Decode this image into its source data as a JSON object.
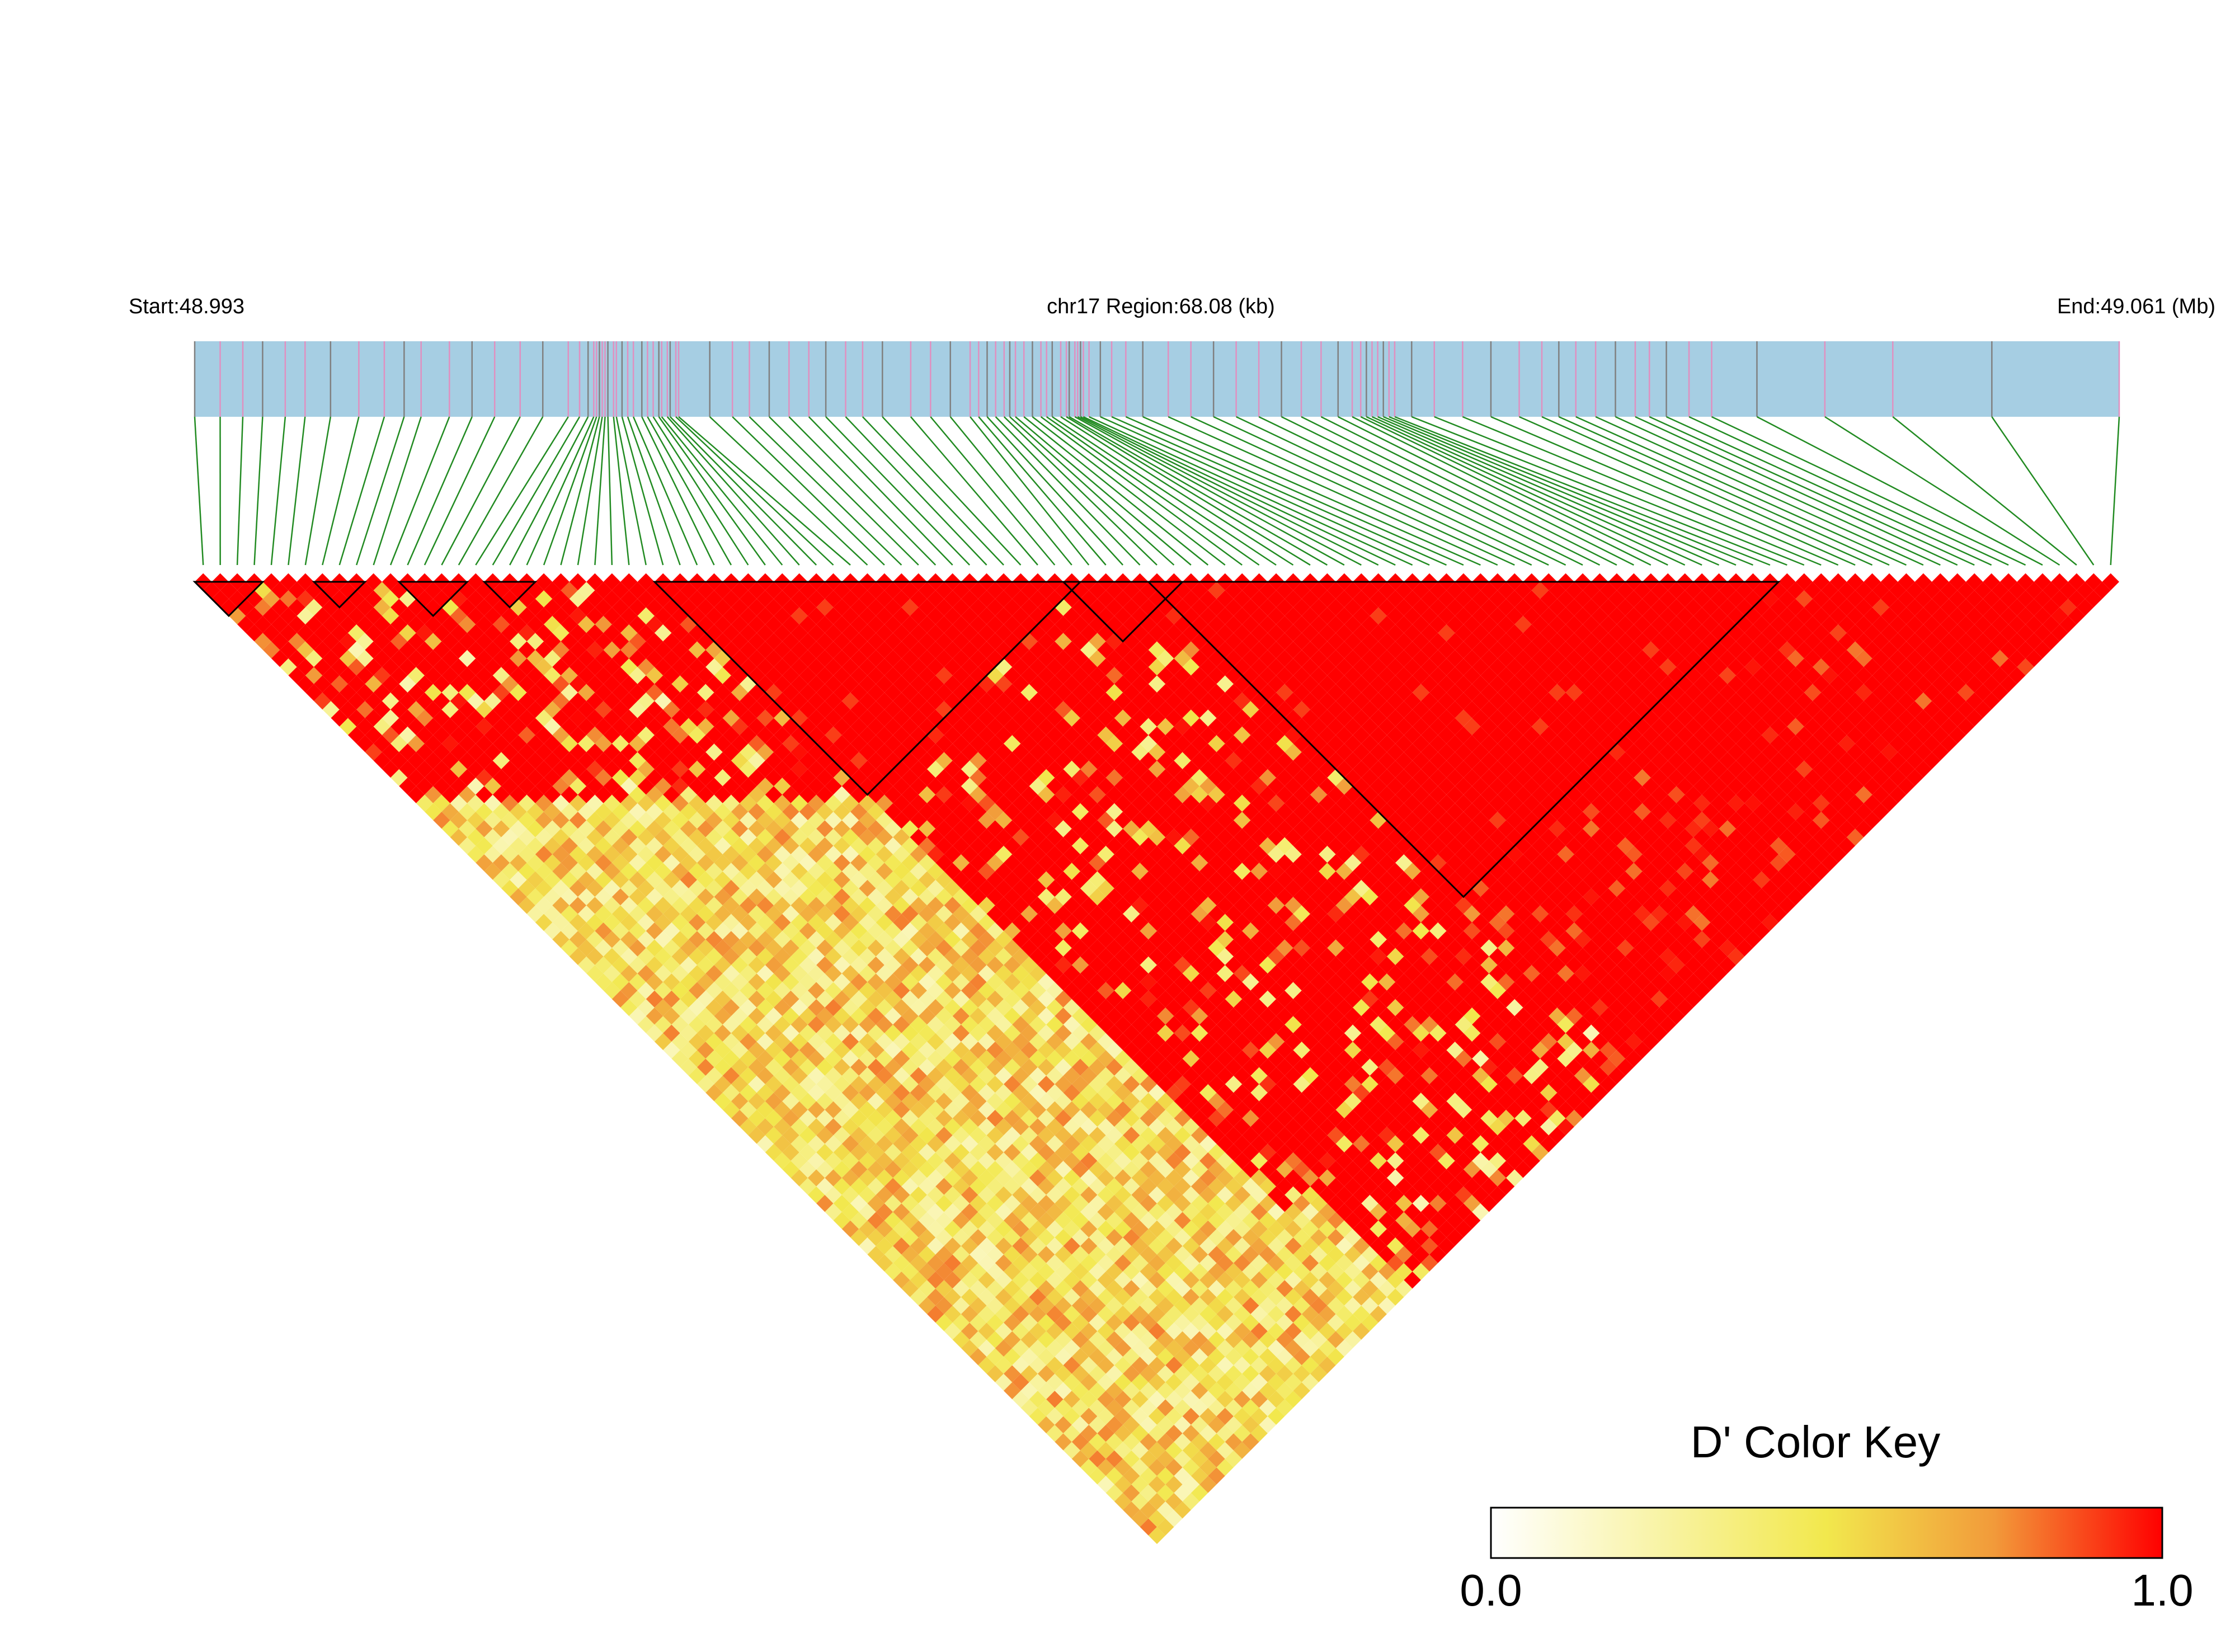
{
  "chart_data": {
    "type": "heatmap",
    "subtype": "linkage-disequilibrium-triangle",
    "start_label": "Start:48.993",
    "region_label": "chr17 Region:68.08 (kb)",
    "end_label": "End:49.061 (Mb)",
    "snp_count": 113,
    "region_start_mb": 48.993,
    "region_end_mb": 49.061,
    "snp_positions_mb": [
      48.993,
      48.9939,
      48.9947,
      48.9954,
      48.9962,
      48.9969,
      48.9978,
      48.9988,
      48.9997,
      49.0004,
      49.001,
      49.002,
      49.0028,
      49.0036,
      49.0045,
      49.0053,
      49.0062,
      49.0066,
      49.0069,
      49.0071,
      49.0072,
      49.0073,
      49.0074,
      49.0075,
      49.0076,
      49.0078,
      49.0079,
      49.0081,
      49.0083,
      49.0085,
      49.0088,
      49.009,
      49.0092,
      49.0094,
      49.0095,
      49.0097,
      49.0098,
      49.01,
      49.0101,
      49.0112,
      49.012,
      49.0126,
      49.0133,
      49.014,
      49.0147,
      49.0153,
      49.016,
      49.0166,
      49.0173,
      49.0183,
      49.019,
      49.0197,
      49.0204,
      49.0207,
      49.021,
      49.0213,
      49.0216,
      49.0218,
      49.022,
      49.0223,
      49.0226,
      49.0229,
      49.0231,
      49.0233,
      49.0236,
      49.0238,
      49.0239,
      49.0241,
      49.0242,
      49.0243,
      49.0244,
      49.0246,
      49.025,
      49.0254,
      49.0259,
      49.0265,
      49.0274,
      49.0282,
      49.029,
      49.0298,
      49.0306,
      49.0314,
      49.0321,
      49.0328,
      49.0334,
      49.0339,
      49.0342,
      49.0344,
      49.0346,
      49.0348,
      49.035,
      49.0352,
      49.0354,
      49.036,
      49.0368,
      49.0378,
      49.0388,
      49.0398,
      49.0406,
      49.0412,
      49.0418,
      49.0425,
      49.0432,
      49.0439,
      49.0444,
      49.045,
      49.0458,
      49.0466,
      49.0482,
      49.0506,
      49.053,
      49.0565,
      49.061
    ],
    "value_name": "D'",
    "value_range": [
      0,
      1
    ],
    "ld_blocks_snp_index_ranges": [
      [
        0,
        3
      ],
      [
        7,
        9
      ],
      [
        12,
        15
      ],
      [
        17,
        19
      ],
      [
        27,
        51
      ],
      [
        51,
        57
      ],
      [
        56,
        92
      ]
    ],
    "color_scale": [
      "#ffffff",
      "#f2e84d",
      "#f29a3a",
      "#ff0000"
    ],
    "legend": {
      "title": "D' Color Key",
      "min_label": "0.0",
      "max_label": "1.0",
      "placement": "bottom-right"
    }
  },
  "colors": {
    "chromosome_track": "#a6cee3",
    "snp_mark_gray": "#808080",
    "snp_mark_pink": "#e090c0",
    "connector_line": "#228b22",
    "block_outline": "#000000"
  }
}
